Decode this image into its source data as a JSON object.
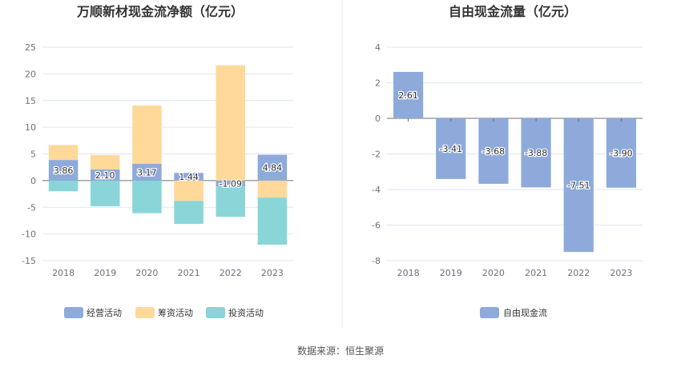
{
  "source_text": "数据来源：恒生聚源",
  "colors": {
    "operating": "#8eaadb",
    "financing": "#ffd99a",
    "investing": "#8ad5d8",
    "free_cash_flow": "#8eaadb",
    "grid": "#e0e6f1",
    "axis": "#6e7079"
  },
  "chart_data": [
    {
      "type": "bar",
      "stacked": true,
      "title": "万顺新材现金流净额（亿元）",
      "categories": [
        "2018",
        "2019",
        "2020",
        "2021",
        "2022",
        "2023"
      ],
      "series": [
        {
          "name": "经营活动",
          "values": [
            3.86,
            2.1,
            3.17,
            1.44,
            -1.09,
            4.84
          ]
        },
        {
          "name": "筹资活动",
          "values": [
            2.8,
            2.7,
            10.9,
            -3.8,
            21.6,
            -3.2
          ]
        },
        {
          "name": "投资活动",
          "values": [
            -2.0,
            -4.8,
            -6.1,
            -4.3,
            -5.7,
            -8.8
          ]
        }
      ],
      "data_labels": [
        "3.86",
        "2.10",
        "3.17",
        "1.44",
        "-1.09",
        "4.84"
      ],
      "y_ticks": [
        "25",
        "20",
        "15",
        "10",
        "5",
        "0",
        "-5",
        "-10",
        "-15"
      ],
      "ylim": [
        -15,
        25
      ],
      "grid": true,
      "legend_position": "bottom"
    },
    {
      "type": "bar",
      "title": "自由现金流量（亿元）",
      "categories": [
        "2018",
        "2019",
        "2020",
        "2021",
        "2022",
        "2023"
      ],
      "series": [
        {
          "name": "自由现金流",
          "values": [
            2.61,
            -3.41,
            -3.68,
            -3.88,
            -7.51,
            -3.9
          ]
        }
      ],
      "data_labels": [
        "2.61",
        "-3.41",
        "-3.68",
        "-3.88",
        "-7.51",
        "-3.90"
      ],
      "y_ticks": [
        "4",
        "2",
        "0",
        "-2",
        "-4",
        "-6",
        "-8"
      ],
      "ylim": [
        -8,
        4
      ],
      "grid": true,
      "legend_position": "bottom"
    }
  ]
}
